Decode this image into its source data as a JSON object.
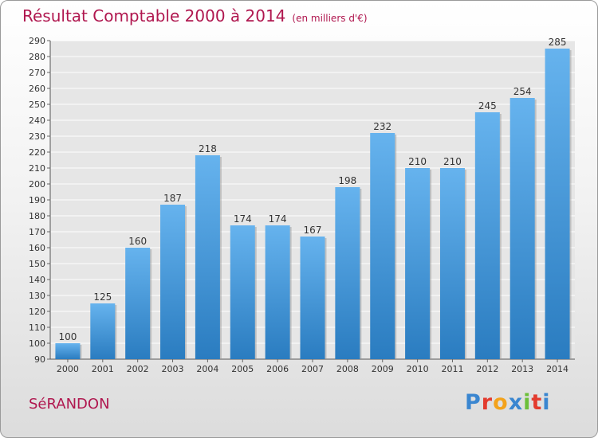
{
  "header": {
    "title": "Résultat Comptable 2000 à 2014",
    "subtitle": "(en milliers d'€)"
  },
  "footer": {
    "commune": "SéRANDON",
    "logo_letters": [
      "P",
      "r",
      "o",
      "x",
      "i",
      "t",
      "i"
    ],
    "logo_colors": [
      "#3a86d0",
      "#e33b2e",
      "#f3a21b",
      "#3a86d0",
      "#6cbf3a",
      "#e33b2e",
      "#3a86d0"
    ]
  },
  "colors": {
    "title": "#b0174f",
    "bar_light": "#66b3ee",
    "bar_dark": "#2a7cc0",
    "grid": "#ffffff"
  },
  "chart_data": {
    "type": "bar",
    "title": "Résultat Comptable 2000 à 2014",
    "subtitle": "(en milliers d'€)",
    "categories": [
      "2000",
      "2001",
      "2002",
      "2003",
      "2004",
      "2005",
      "2006",
      "2007",
      "2008",
      "2009",
      "2010",
      "2011",
      "2012",
      "2013",
      "2014"
    ],
    "values": [
      100,
      125,
      160,
      187,
      218,
      174,
      174,
      167,
      198,
      232,
      210,
      210,
      245,
      254,
      285
    ],
    "ylim": [
      90,
      290
    ],
    "ytick_step": 10,
    "grid": true,
    "xlabel": "",
    "ylabel": ""
  }
}
